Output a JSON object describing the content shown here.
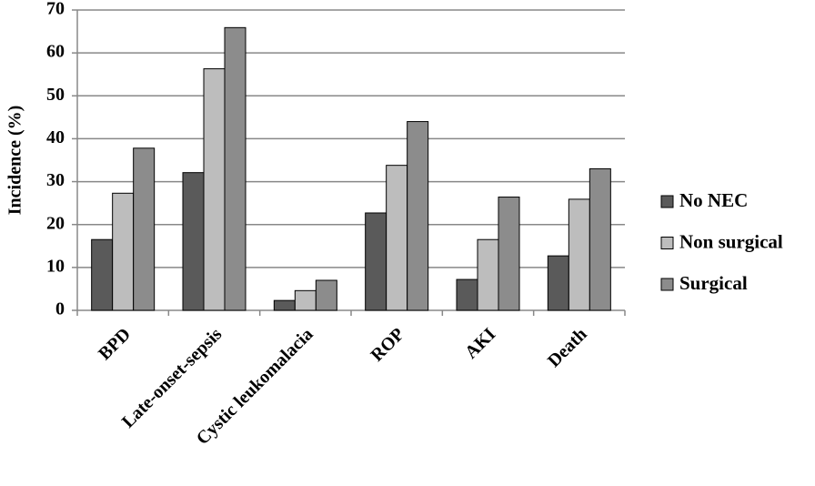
{
  "chart_data": {
    "type": "bar",
    "y_label": "Incidence (%)",
    "categories": [
      "BPD",
      "Late-onset-sepsis",
      "Cystic leukomalacia",
      "ROP",
      "AKI",
      "Death"
    ],
    "series": [
      {
        "name": "No NEC",
        "color": "#5a5a5a",
        "values": [
          16.5,
          32.1,
          2.3,
          22.7,
          7.2,
          12.7
        ]
      },
      {
        "name": "Non surgical",
        "color": "#bdbdbd",
        "values": [
          27.3,
          56.3,
          4.6,
          33.8,
          16.5,
          25.9
        ]
      },
      {
        "name": "Surgical",
        "color": "#8c8c8c",
        "values": [
          37.8,
          65.9,
          7.0,
          44.0,
          26.4,
          33.0
        ]
      }
    ],
    "ylim": [
      0,
      70
    ],
    "yticks": [
      0,
      10,
      20,
      30,
      40,
      50,
      60,
      70
    ],
    "grid": true,
    "legend": "right"
  }
}
